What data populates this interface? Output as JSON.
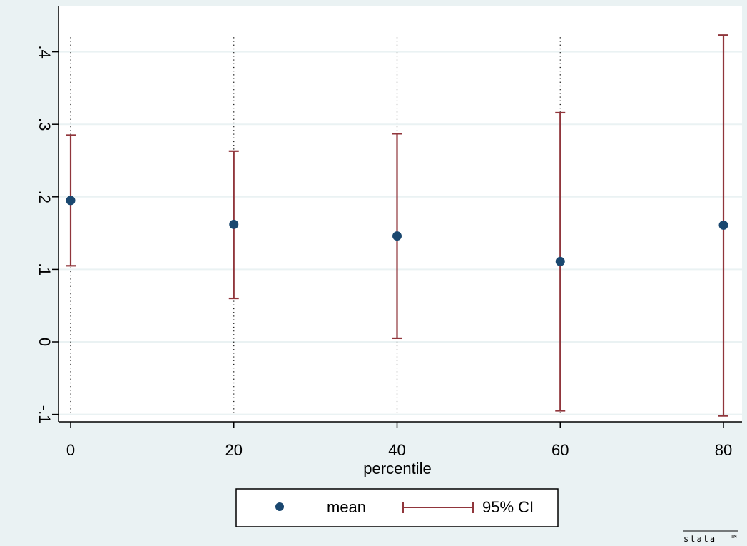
{
  "colors": {
    "outer_background": "#eaf2f3",
    "plot_background": "#ffffff",
    "grid": "#eaf2f3",
    "marker": "#1a476f",
    "ci": "#90353b",
    "vline": "#000000"
  },
  "chart_data": {
    "type": "scatter",
    "x": [
      0,
      20,
      40,
      60,
      80
    ],
    "series": [
      {
        "name": "mean",
        "kind": "point",
        "values": [
          0.195,
          0.162,
          0.146,
          0.111,
          0.161
        ]
      },
      {
        "name": "95% CI",
        "kind": "errorbar",
        "lower": [
          0.105,
          0.06,
          0.005,
          -0.095,
          -0.102
        ],
        "upper": [
          0.285,
          0.263,
          0.287,
          0.316,
          0.423
        ]
      }
    ],
    "xlabel": "percentile",
    "ylabel": "",
    "xlim": [
      0,
      80
    ],
    "ylim": [
      -0.1,
      0.42
    ],
    "xticks": [
      0,
      20,
      40,
      60,
      80
    ],
    "xtick_labels": [
      "0",
      "20",
      "40",
      "60",
      "80"
    ],
    "yticks": [
      -0.1,
      0,
      0.1,
      0.2,
      0.3,
      0.4
    ],
    "ytick_labels": [
      "-.1",
      "0",
      ".1",
      ".2",
      ".3",
      ".4"
    ],
    "vertical_reference_lines": [
      0,
      20,
      40,
      60
    ],
    "grid": true,
    "legend": {
      "placement": "bottom",
      "entries": [
        "mean",
        "95% CI"
      ]
    },
    "brand": "stata"
  }
}
